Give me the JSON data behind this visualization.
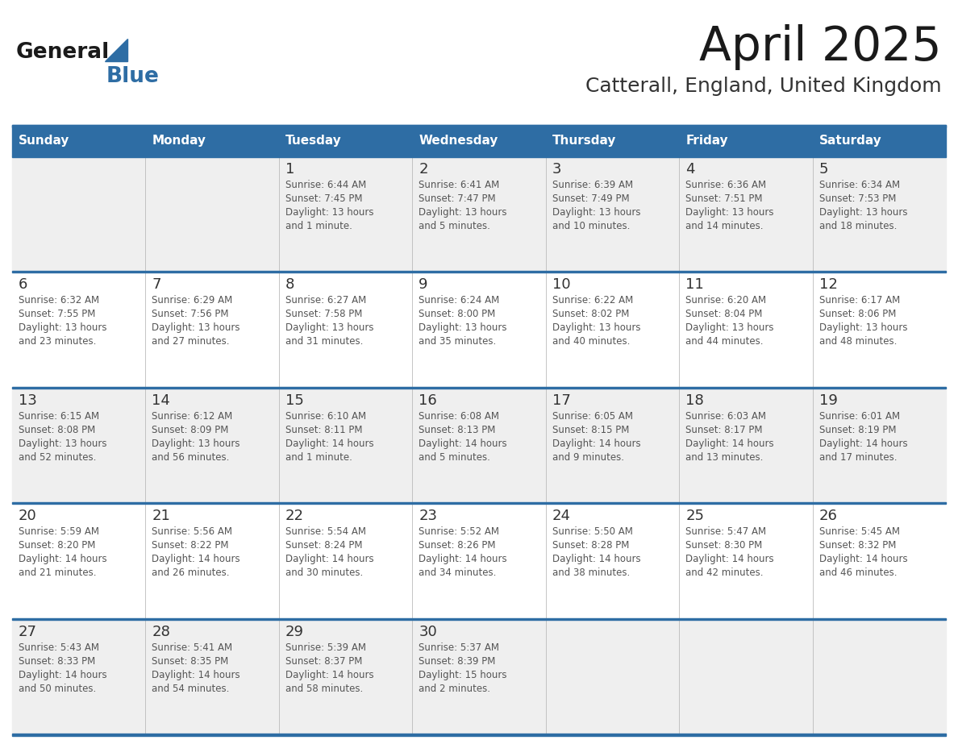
{
  "title": "April 2025",
  "subtitle": "Catterall, England, United Kingdom",
  "header_bg": "#2E6DA4",
  "header_text_color": "#FFFFFF",
  "cell_bg_odd": "#EFEFEF",
  "cell_bg_even": "#FFFFFF",
  "day_number_color": "#333333",
  "text_color": "#555555",
  "border_color": "#2E6DA4",
  "days_of_week": [
    "Sunday",
    "Monday",
    "Tuesday",
    "Wednesday",
    "Thursday",
    "Friday",
    "Saturday"
  ],
  "weeks": [
    [
      {
        "day": "",
        "sunrise": "",
        "sunset": "",
        "daylight": ""
      },
      {
        "day": "",
        "sunrise": "",
        "sunset": "",
        "daylight": ""
      },
      {
        "day": "1",
        "sunrise": "6:44 AM",
        "sunset": "7:45 PM",
        "daylight": "13 hours and 1 minute."
      },
      {
        "day": "2",
        "sunrise": "6:41 AM",
        "sunset": "7:47 PM",
        "daylight": "13 hours and 5 minutes."
      },
      {
        "day": "3",
        "sunrise": "6:39 AM",
        "sunset": "7:49 PM",
        "daylight": "13 hours and 10 minutes."
      },
      {
        "day": "4",
        "sunrise": "6:36 AM",
        "sunset": "7:51 PM",
        "daylight": "13 hours and 14 minutes."
      },
      {
        "day": "5",
        "sunrise": "6:34 AM",
        "sunset": "7:53 PM",
        "daylight": "13 hours and 18 minutes."
      }
    ],
    [
      {
        "day": "6",
        "sunrise": "6:32 AM",
        "sunset": "7:55 PM",
        "daylight": "13 hours and 23 minutes."
      },
      {
        "day": "7",
        "sunrise": "6:29 AM",
        "sunset": "7:56 PM",
        "daylight": "13 hours and 27 minutes."
      },
      {
        "day": "8",
        "sunrise": "6:27 AM",
        "sunset": "7:58 PM",
        "daylight": "13 hours and 31 minutes."
      },
      {
        "day": "9",
        "sunrise": "6:24 AM",
        "sunset": "8:00 PM",
        "daylight": "13 hours and 35 minutes."
      },
      {
        "day": "10",
        "sunrise": "6:22 AM",
        "sunset": "8:02 PM",
        "daylight": "13 hours and 40 minutes."
      },
      {
        "day": "11",
        "sunrise": "6:20 AM",
        "sunset": "8:04 PM",
        "daylight": "13 hours and 44 minutes."
      },
      {
        "day": "12",
        "sunrise": "6:17 AM",
        "sunset": "8:06 PM",
        "daylight": "13 hours and 48 minutes."
      }
    ],
    [
      {
        "day": "13",
        "sunrise": "6:15 AM",
        "sunset": "8:08 PM",
        "daylight": "13 hours and 52 minutes."
      },
      {
        "day": "14",
        "sunrise": "6:12 AM",
        "sunset": "8:09 PM",
        "daylight": "13 hours and 56 minutes."
      },
      {
        "day": "15",
        "sunrise": "6:10 AM",
        "sunset": "8:11 PM",
        "daylight": "14 hours and 1 minute."
      },
      {
        "day": "16",
        "sunrise": "6:08 AM",
        "sunset": "8:13 PM",
        "daylight": "14 hours and 5 minutes."
      },
      {
        "day": "17",
        "sunrise": "6:05 AM",
        "sunset": "8:15 PM",
        "daylight": "14 hours and 9 minutes."
      },
      {
        "day": "18",
        "sunrise": "6:03 AM",
        "sunset": "8:17 PM",
        "daylight": "14 hours and 13 minutes."
      },
      {
        "day": "19",
        "sunrise": "6:01 AM",
        "sunset": "8:19 PM",
        "daylight": "14 hours and 17 minutes."
      }
    ],
    [
      {
        "day": "20",
        "sunrise": "5:59 AM",
        "sunset": "8:20 PM",
        "daylight": "14 hours and 21 minutes."
      },
      {
        "day": "21",
        "sunrise": "5:56 AM",
        "sunset": "8:22 PM",
        "daylight": "14 hours and 26 minutes."
      },
      {
        "day": "22",
        "sunrise": "5:54 AM",
        "sunset": "8:24 PM",
        "daylight": "14 hours and 30 minutes."
      },
      {
        "day": "23",
        "sunrise": "5:52 AM",
        "sunset": "8:26 PM",
        "daylight": "14 hours and 34 minutes."
      },
      {
        "day": "24",
        "sunrise": "5:50 AM",
        "sunset": "8:28 PM",
        "daylight": "14 hours and 38 minutes."
      },
      {
        "day": "25",
        "sunrise": "5:47 AM",
        "sunset": "8:30 PM",
        "daylight": "14 hours and 42 minutes."
      },
      {
        "day": "26",
        "sunrise": "5:45 AM",
        "sunset": "8:32 PM",
        "daylight": "14 hours and 46 minutes."
      }
    ],
    [
      {
        "day": "27",
        "sunrise": "5:43 AM",
        "sunset": "8:33 PM",
        "daylight": "14 hours and 50 minutes."
      },
      {
        "day": "28",
        "sunrise": "5:41 AM",
        "sunset": "8:35 PM",
        "daylight": "14 hours and 54 minutes."
      },
      {
        "day": "29",
        "sunrise": "5:39 AM",
        "sunset": "8:37 PM",
        "daylight": "14 hours and 58 minutes."
      },
      {
        "day": "30",
        "sunrise": "5:37 AM",
        "sunset": "8:39 PM",
        "daylight": "15 hours and 2 minutes."
      },
      {
        "day": "",
        "sunrise": "",
        "sunset": "",
        "daylight": ""
      },
      {
        "day": "",
        "sunrise": "",
        "sunset": "",
        "daylight": ""
      },
      {
        "day": "",
        "sunrise": "",
        "sunset": "",
        "daylight": ""
      }
    ]
  ]
}
